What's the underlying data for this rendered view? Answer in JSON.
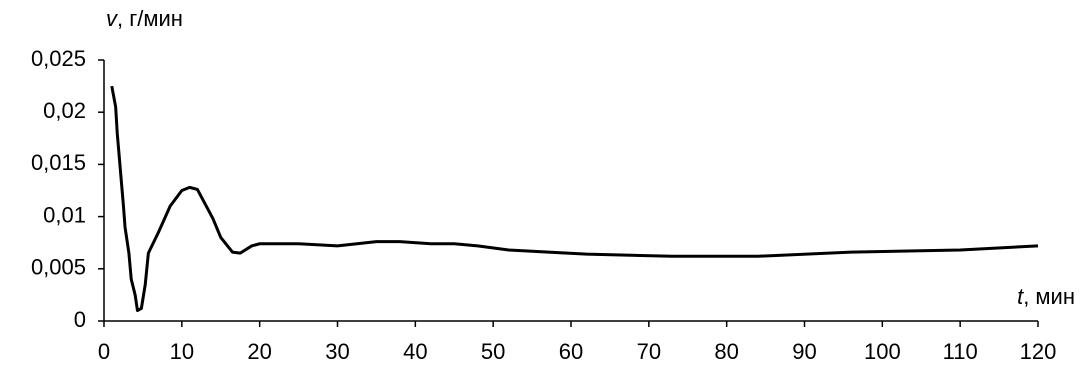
{
  "chart_data": {
    "type": "line",
    "y_label": "v, г/мин",
    "x_label": "t, мин",
    "series": [
      {
        "color": "#000000",
        "x": [
          1,
          1.5,
          1.7,
          2.5,
          2.7,
          3.2,
          3.5,
          4,
          4.3,
          4.8,
          5.3,
          5.7,
          7,
          8.5,
          10,
          11,
          12,
          13,
          14,
          15,
          16.5,
          17.5,
          19,
          20,
          25,
          30,
          35,
          38,
          42,
          45,
          48,
          52,
          62,
          73,
          84,
          96,
          110,
          120
        ],
        "values": [
          0.0225,
          0.0205,
          0.018,
          0.011,
          0.009,
          0.0065,
          0.004,
          0.0025,
          0.001,
          0.0012,
          0.0035,
          0.0065,
          0.0085,
          0.011,
          0.0125,
          0.0128,
          0.0126,
          0.0112,
          0.0098,
          0.008,
          0.0066,
          0.0065,
          0.0072,
          0.0074,
          0.0074,
          0.0072,
          0.0076,
          0.0076,
          0.0074,
          0.0074,
          0.0072,
          0.0068,
          0.0064,
          0.0062,
          0.0062,
          0.0066,
          0.0068,
          0.0072
        ]
      }
    ],
    "xlim": [
      0,
      120
    ],
    "xticks": [
      0,
      10,
      20,
      30,
      40,
      50,
      60,
      70,
      80,
      90,
      100,
      110,
      120
    ],
    "ylim": [
      0,
      0.025
    ],
    "yticks": [
      0,
      {
        "value": 0.005,
        "label": "0,005"
      },
      {
        "value": 0.01,
        "label": "0,01"
      },
      {
        "value": 0.015,
        "label": "0,015"
      },
      {
        "value": 0.02,
        "label": "0,02"
      },
      {
        "value": 0.025,
        "label": "0,025"
      }
    ],
    "grid": false
  }
}
